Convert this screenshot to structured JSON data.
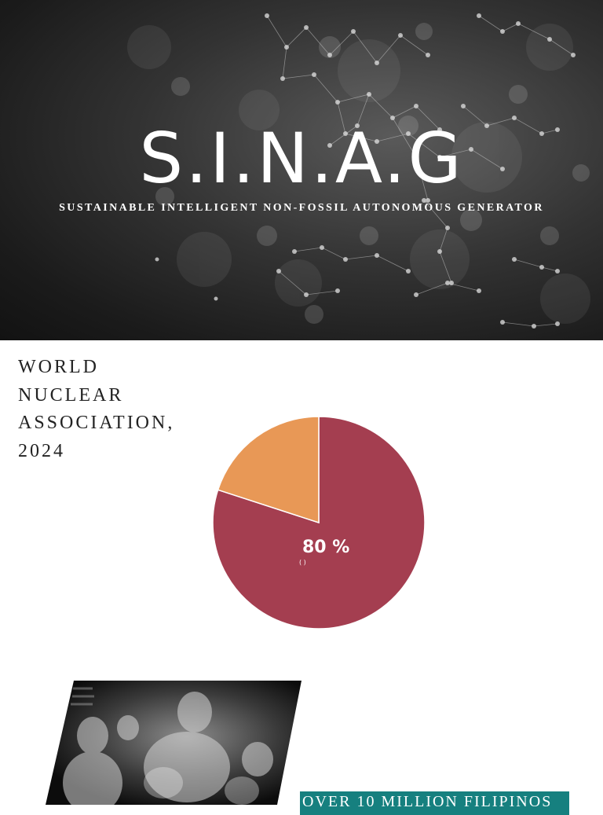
{
  "hero": {
    "title": "S.I.N.A.G",
    "subtitle": "SUSTAINABLE INTELLIGENT NON-FOSSIL AUTONOMOUS GENERATOR"
  },
  "source": {
    "heading": "WORLD NUCLEAR ASSOCIATION, 2024"
  },
  "chart_data": {
    "type": "pie",
    "slices": [
      {
        "value": 80,
        "color": "#a43e50"
      },
      {
        "value": 20,
        "color": "#e89856"
      }
    ],
    "data_label": "80 %",
    "data_sublabel": "( )"
  },
  "photo": {
    "icon": "family-photo"
  },
  "banner": {
    "text": "OVER 10 MILLION FILIPINOS",
    "color": "#16807f"
  }
}
